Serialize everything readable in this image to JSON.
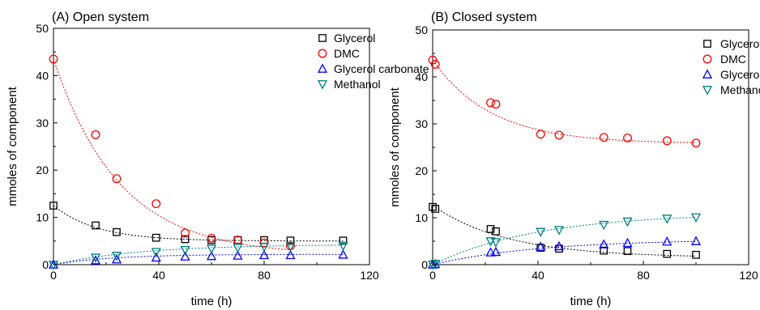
{
  "chart_data": [
    {
      "type": "scatter",
      "title": "(A) Open system",
      "xlabel": "time (h)",
      "ylabel": "mmoles of component",
      "xlim": [
        0,
        120
      ],
      "ylim": [
        0,
        50
      ],
      "xticks": [
        0,
        40,
        80,
        120
      ],
      "yticks": [
        0,
        10,
        20,
        30,
        40,
        50
      ],
      "legend_position": "top-right",
      "series": [
        {
          "name": "Glycerol",
          "color": "#000000",
          "marker": "square",
          "x": [
            0,
            16,
            24,
            39,
            50,
            60,
            70,
            80,
            90,
            110
          ],
          "y": [
            12.5,
            8.3,
            6.9,
            5.7,
            5.4,
            5.2,
            5.2,
            5.2,
            5.1,
            5.1
          ],
          "fit": {
            "y0": 12.5,
            "yinf": 5.0,
            "k": 0.06
          }
        },
        {
          "name": "DMC",
          "color": "#ff0000",
          "marker": "circle",
          "x": [
            0,
            16,
            24,
            39,
            50,
            60,
            70,
            80,
            90
          ],
          "y": [
            43.5,
            27.5,
            18.2,
            12.9,
            6.7,
            5.6,
            5.2,
            4.6,
            4.0
          ],
          "fit": {
            "y0": 43.5,
            "yinf": 2.0,
            "k": 0.04
          }
        },
        {
          "name": "Glycerol carbonate",
          "color": "#0000ff",
          "marker": "triangle-up",
          "x": [
            0,
            16,
            24,
            39,
            50,
            60,
            70,
            80,
            90,
            110
          ],
          "y": [
            0,
            0.9,
            1.1,
            1.5,
            1.7,
            1.8,
            1.9,
            2.0,
            2.0,
            2.1
          ],
          "fit": {
            "y0": 0,
            "yinf": 2.2,
            "k": 0.045
          }
        },
        {
          "name": "Methanol",
          "color": "#008080",
          "marker": "triangle-down",
          "x": [
            0,
            16,
            24,
            39,
            50,
            60,
            70,
            80,
            90,
            110
          ],
          "y": [
            0,
            1.5,
            1.9,
            2.7,
            3.1,
            3.4,
            3.6,
            3.8,
            3.9,
            4.0
          ],
          "fit": {
            "y0": 0,
            "yinf": 4.3,
            "k": 0.03
          }
        }
      ]
    },
    {
      "type": "scatter",
      "title": "(B) Closed system",
      "xlabel": "time (h)",
      "ylabel": "mmoles of component",
      "xlim": [
        0,
        120
      ],
      "ylim": [
        0,
        50
      ],
      "xticks": [
        0,
        40,
        80,
        120
      ],
      "yticks": [
        0,
        10,
        20,
        30,
        40,
        50
      ],
      "legend_position": "top-right",
      "series": [
        {
          "name": "Glycerol",
          "color": "#000000",
          "marker": "square",
          "x": [
            0,
            1,
            22,
            24,
            41,
            48,
            65,
            74,
            89,
            100
          ],
          "y": [
            12.3,
            11.9,
            7.6,
            7.1,
            3.6,
            3.4,
            3.0,
            2.9,
            2.3,
            2.1
          ],
          "fit": {
            "y0": 12.6,
            "yinf": 1.5,
            "k": 0.035
          }
        },
        {
          "name": "DMC",
          "color": "#ff0000",
          "marker": "circle",
          "x": [
            0,
            1,
            22,
            24,
            41,
            48,
            65,
            74,
            89,
            100
          ],
          "y": [
            43.6,
            42.7,
            34.5,
            34.2,
            27.8,
            27.6,
            27.1,
            27.0,
            26.4,
            25.9
          ],
          "fit": {
            "y0": 43.6,
            "yinf": 25.8,
            "k": 0.045
          }
        },
        {
          "name": "Glycerol carbonate",
          "color": "#0000ff",
          "marker": "triangle-up",
          "x": [
            0,
            1,
            22,
            24,
            41,
            48,
            65,
            74,
            89,
            100
          ],
          "y": [
            0,
            0.1,
            2.6,
            2.7,
            3.8,
            3.9,
            4.3,
            4.6,
            4.9,
            5.0
          ],
          "fit": {
            "y0": 0,
            "yinf": 5.4,
            "k": 0.025
          }
        },
        {
          "name": "Methanol",
          "color": "#008080",
          "marker": "triangle-down",
          "x": [
            0,
            1,
            22,
            24,
            41,
            48,
            65,
            74,
            89,
            100
          ],
          "y": [
            0,
            0.2,
            5.0,
            4.8,
            7.0,
            7.4,
            8.5,
            9.2,
            9.8,
            10.1
          ],
          "fit": {
            "y0": 0,
            "yinf": 11.0,
            "k": 0.025
          }
        }
      ]
    }
  ]
}
